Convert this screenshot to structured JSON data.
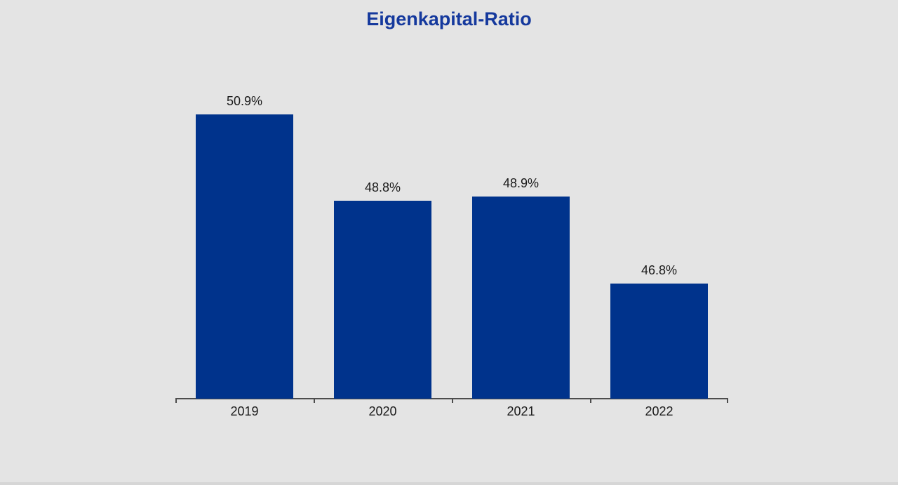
{
  "chart_data": {
    "type": "bar",
    "title": "Eigenkapital-Ratio",
    "categories": [
      "2019",
      "2020",
      "2021",
      "2022"
    ],
    "values": [
      50.9,
      48.8,
      48.9,
      46.8
    ],
    "value_labels": [
      "50.9%",
      "48.8%",
      "48.9%",
      "46.8%"
    ],
    "xlabel": "",
    "ylabel": "",
    "ylim": [
      44,
      52
    ],
    "grid": false,
    "legend": "none",
    "y_axis_shown": false,
    "colors": {
      "bar": "#00338c",
      "title": "#15399d",
      "background": "#e4e4e4",
      "axis": "#4d4d4d",
      "label": "#1a1a1a"
    }
  }
}
